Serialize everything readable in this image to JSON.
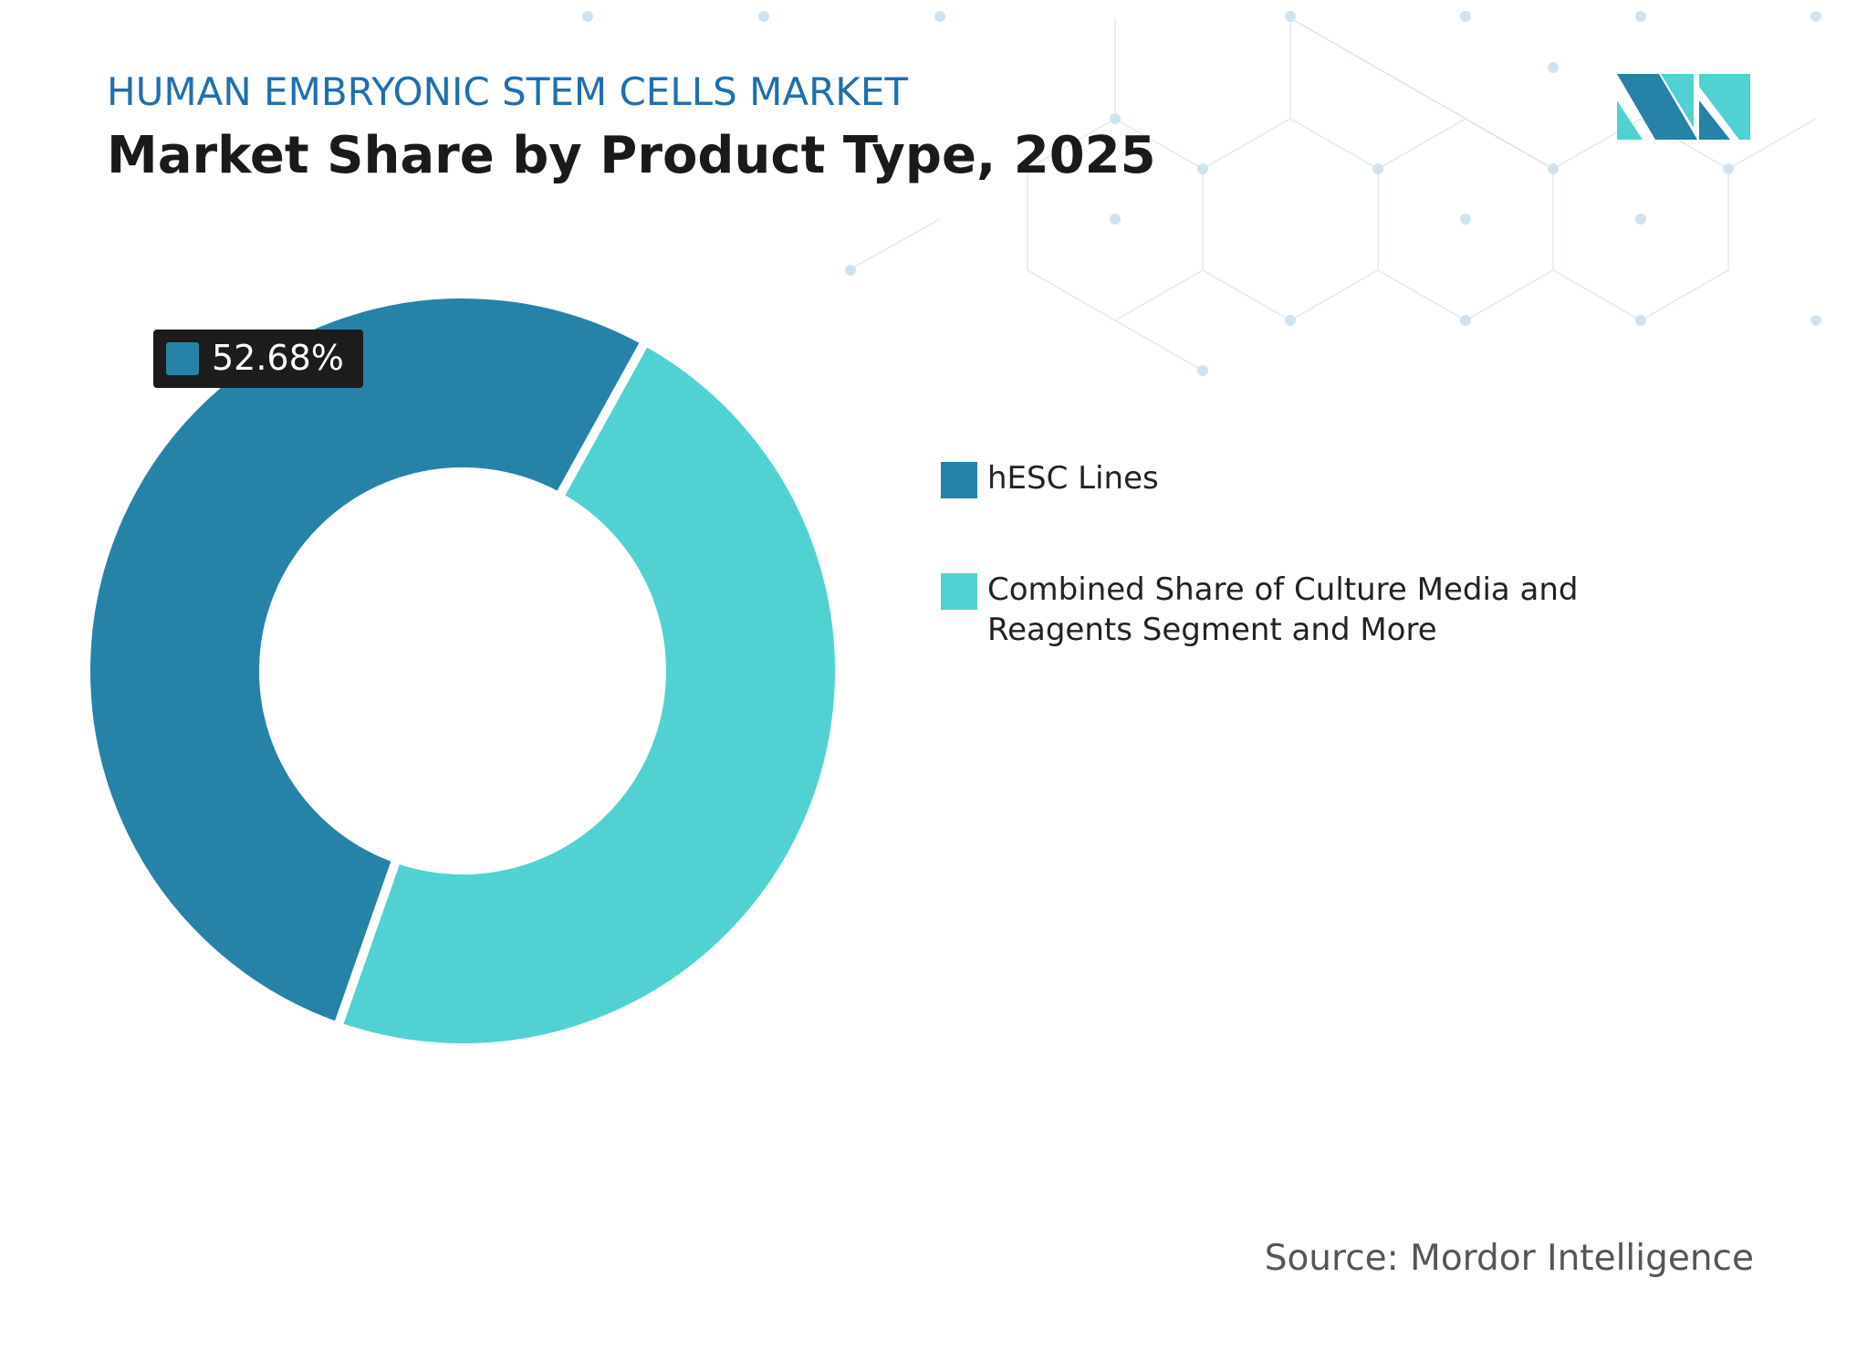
{
  "chart_data": {
    "type": "donut",
    "header": "HUMAN EMBRYONIC STEM CELLS MARKET",
    "title": "Market Share by Product Type, 2025",
    "categories": [
      "hESC Lines",
      "Combined Share of Culture Media and Reagents Segment and More"
    ],
    "values": [
      52.68,
      47.32
    ],
    "value_labels": [
      "52.68%",
      null
    ],
    "colors": [
      "#2782a7",
      "#52d1d2"
    ],
    "source": "Source: Mordor Intelligence"
  }
}
